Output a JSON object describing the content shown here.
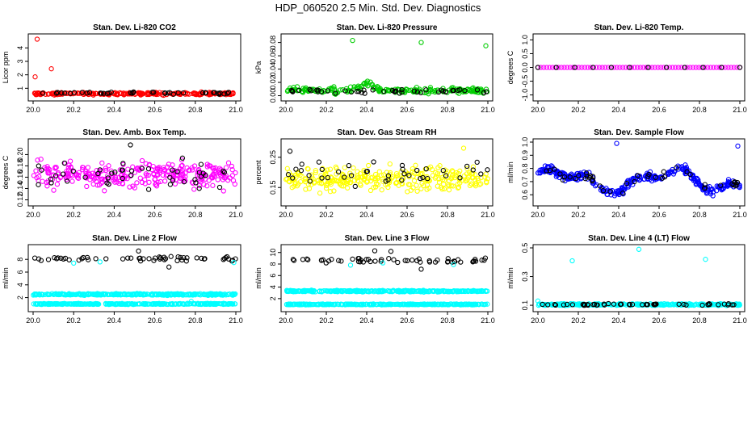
{
  "title": "HDP_060520  2.5 Min. Std. Dev. Diagnostics",
  "colors": {
    "black": "#000000",
    "red": "#ff0000",
    "green": "#00cc00",
    "magenta": "#ff00ff",
    "yellow": "#ffff00",
    "blue": "#0000ff",
    "cyan": "#00ffff"
  },
  "chart_data": [
    {
      "id": "co2",
      "type": "scatter",
      "title": "Stan. Dev. Li-820 CO2",
      "ylabel": "Licor ppm",
      "xlim": [
        20.0,
        21.0
      ],
      "ylim": [
        0.3,
        4.8
      ],
      "xticks": [
        20.0,
        20.2,
        20.4,
        20.6,
        20.8,
        21.0
      ],
      "xtick_labels": [
        "20.0",
        "20.2",
        "20.4",
        "20.6",
        "20.8",
        "21.0"
      ],
      "yticks": [
        1,
        2,
        3,
        4
      ],
      "ytick_labels": [
        "1",
        "2",
        "3",
        "4"
      ],
      "series": [
        {
          "name": "main",
          "color": "red",
          "base": 0.6,
          "spread": 0.09,
          "n": 220
        },
        {
          "name": "overlay",
          "color": "black",
          "base": 0.65,
          "spread": 0.07,
          "n": 40
        }
      ],
      "outliers": [
        {
          "x": 20.01,
          "y": 1.85,
          "color": "red"
        },
        {
          "x": 20.02,
          "y": 4.65,
          "color": "red"
        },
        {
          "x": 20.09,
          "y": 2.45,
          "color": "red"
        }
      ]
    },
    {
      "id": "pressure",
      "type": "scatter",
      "title": "Stan. Dev. Li-820 Pressure",
      "ylabel": "kPa",
      "xlim": [
        20.0,
        21.0
      ],
      "ylim": [
        -0.003,
        0.088
      ],
      "xticks": [
        20.0,
        20.2,
        20.4,
        20.6,
        20.8,
        21.0
      ],
      "xtick_labels": [
        "20.0",
        "20.2",
        "20.4",
        "20.6",
        "20.8",
        "21.0"
      ],
      "yticks": [
        0.0,
        0.02,
        0.04,
        0.06,
        0.08
      ],
      "ytick_labels": [
        "0.00",
        "0.02",
        "0.04",
        "0.06",
        "0.08"
      ],
      "series": [
        {
          "name": "main",
          "color": "green",
          "base": 0.008,
          "spread": 0.004,
          "n": 220,
          "hump": {
            "x": 20.4,
            "h": 0.01,
            "w": 0.05
          }
        },
        {
          "name": "overlay",
          "color": "black",
          "base": 0.007,
          "spread": 0.003,
          "n": 45
        }
      ],
      "outliers": [
        {
          "x": 20.33,
          "y": 0.083,
          "color": "green"
        },
        {
          "x": 20.67,
          "y": 0.08,
          "color": "green"
        },
        {
          "x": 20.99,
          "y": 0.075,
          "color": "green"
        }
      ]
    },
    {
      "id": "temp",
      "type": "scatter",
      "title": "Stan. Dev. Li-820 Temp.",
      "ylabel": "degrees C",
      "xlim": [
        20.0,
        21.0
      ],
      "ylim": [
        -1.1,
        1.1
      ],
      "xticks": [
        20.0,
        20.2,
        20.4,
        20.6,
        20.8,
        21.0
      ],
      "xtick_labels": [
        "20.0",
        "20.2",
        "20.4",
        "20.6",
        "20.8",
        "21.0"
      ],
      "yticks": [
        -1.0,
        -0.5,
        0.0,
        0.5,
        1.0
      ],
      "ytick_labels": [
        "-1.0",
        "-0.5",
        "0.0",
        "0.5",
        "1.0"
      ],
      "series": [
        {
          "name": "main",
          "color": "magenta",
          "base": 0.0,
          "spread": 0.0,
          "n": 70
        },
        {
          "name": "overlay",
          "color": "black",
          "base": 0.0,
          "spread": 0.0,
          "n": 12
        }
      ],
      "outliers": []
    },
    {
      "id": "boxtemp",
      "type": "scatter",
      "title": "Stan. Dev. Amb. Box Temp.",
      "ylabel": "degrees C",
      "xlim": [
        20.0,
        21.0
      ],
      "ylim": [
        0.115,
        0.222
      ],
      "xticks": [
        20.0,
        20.2,
        20.4,
        20.6,
        20.8,
        21.0
      ],
      "xtick_labels": [
        "20.0",
        "20.2",
        "20.4",
        "20.6",
        "20.8",
        "21.0"
      ],
      "yticks": [
        0.12,
        0.14,
        0.16,
        0.18,
        0.2
      ],
      "ytick_labels": [
        "0.12",
        "0.14",
        "0.16",
        "0.18",
        "0.20"
      ],
      "series": [
        {
          "name": "main",
          "color": "magenta",
          "base": 0.164,
          "spread": 0.022,
          "n": 300
        },
        {
          "name": "overlay",
          "color": "black",
          "base": 0.166,
          "spread": 0.022,
          "n": 45
        }
      ],
      "outliers": [
        {
          "x": 20.48,
          "y": 0.217,
          "color": "black"
        }
      ]
    },
    {
      "id": "rh",
      "type": "scatter",
      "title": "Stan. Dev. Gas Stream RH",
      "ylabel": "percent",
      "xlim": [
        20.0,
        21.0
      ],
      "ylim": [
        0.1,
        0.3
      ],
      "xticks": [
        20.0,
        20.2,
        20.4,
        20.6,
        20.8,
        21.0
      ],
      "xtick_labels": [
        "20.0",
        "20.2",
        "20.4",
        "20.6",
        "20.8",
        "21.0"
      ],
      "yticks": [
        0.15,
        0.25
      ],
      "ytick_labels": [
        "0.15",
        "0.25"
      ],
      "series": [
        {
          "name": "main",
          "color": "yellow",
          "base": 0.18,
          "spread": 0.035,
          "n": 300
        },
        {
          "name": "overlay",
          "color": "black",
          "base": 0.2,
          "spread": 0.035,
          "n": 40
        }
      ],
      "outliers": [
        {
          "x": 20.02,
          "y": 0.27,
          "color": "black"
        },
        {
          "x": 20.88,
          "y": 0.28,
          "color": "yellow"
        }
      ]
    },
    {
      "id": "sampleflow",
      "type": "scatter",
      "title": "Stan. Dev. Sample Flow",
      "ylabel": "ml/min",
      "xlim": [
        20.0,
        21.0
      ],
      "ylim": [
        0.54,
        1.0
      ],
      "xticks": [
        20.0,
        20.2,
        20.4,
        20.6,
        20.8,
        21.0
      ],
      "xtick_labels": [
        "20.0",
        "20.2",
        "20.4",
        "20.6",
        "20.8",
        "21.0"
      ],
      "yticks": [
        0.6,
        0.7,
        0.8,
        0.9,
        1.0
      ],
      "ytick_labels": [
        "0.6",
        "0.7",
        "0.8",
        "0.9",
        "1.0"
      ],
      "series": [
        {
          "name": "main",
          "color": "blue",
          "base": "wave",
          "spread": 0.03,
          "n": 320
        },
        {
          "name": "overlay",
          "color": "black",
          "base": "wave",
          "spread": 0.03,
          "n": 45
        }
      ],
      "outliers": [
        {
          "x": 20.39,
          "y": 0.99,
          "color": "blue"
        },
        {
          "x": 20.99,
          "y": 0.97,
          "color": "blue"
        }
      ]
    },
    {
      "id": "line2",
      "type": "scatter",
      "title": "Stan. Dev. Line 2 Flow",
      "ylabel": "ml/min",
      "xlim": [
        20.0,
        21.0
      ],
      "ylim": [
        0.3,
        9.8
      ],
      "xticks": [
        20.0,
        20.2,
        20.4,
        20.6,
        20.8,
        21.0
      ],
      "xtick_labels": [
        "20.0",
        "20.2",
        "20.4",
        "20.6",
        "20.8",
        "21.0"
      ],
      "yticks": [
        2,
        4,
        6,
        8
      ],
      "ytick_labels": [
        "2",
        "4",
        "6",
        "8"
      ],
      "series": [
        {
          "name": "band-upper",
          "color": "cyan",
          "base": 2.5,
          "spread": 0.12,
          "n": 330
        },
        {
          "name": "band-lower",
          "color": "cyan",
          "base": 1.0,
          "spread": 0.08,
          "n": 330
        },
        {
          "name": "overlay",
          "color": "black",
          "base": 8.1,
          "spread": 0.35,
          "n": 55
        }
      ],
      "outliers": [
        {
          "x": 20.52,
          "y": 9.3,
          "color": "black"
        },
        {
          "x": 20.67,
          "y": 6.8,
          "color": "black"
        },
        {
          "x": 20.78,
          "y": 1.4,
          "color": "cyan"
        },
        {
          "x": 20.2,
          "y": 7.4,
          "color": "cyan"
        },
        {
          "x": 20.33,
          "y": 7.6,
          "color": "cyan"
        },
        {
          "x": 20.99,
          "y": 7.5,
          "color": "cyan"
        }
      ]
    },
    {
      "id": "line3",
      "type": "scatter",
      "title": "Stan. Dev. Line 3 Flow",
      "ylabel": "ml/min",
      "xlim": [
        20.0,
        21.0
      ],
      "ylim": [
        0.3,
        10.8
      ],
      "xticks": [
        20.0,
        20.2,
        20.4,
        20.6,
        20.8,
        21.0
      ],
      "xtick_labels": [
        "20.0",
        "20.2",
        "20.4",
        "20.6",
        "20.8",
        "21.0"
      ],
      "yticks": [
        2,
        4,
        6,
        8,
        10
      ],
      "ytick_labels": [
        "2",
        "4",
        "6",
        "8",
        "10"
      ],
      "series": [
        {
          "name": "band-upper",
          "color": "cyan",
          "base": 3.3,
          "spread": 0.12,
          "n": 330
        },
        {
          "name": "band-lower",
          "color": "cyan",
          "base": 1.0,
          "spread": 0.07,
          "n": 330
        },
        {
          "name": "overlay",
          "color": "black",
          "base": 8.6,
          "spread": 0.4,
          "n": 55
        }
      ],
      "outliers": [
        {
          "x": 20.44,
          "y": 10.3,
          "color": "black"
        },
        {
          "x": 20.52,
          "y": 10.2,
          "color": "black"
        },
        {
          "x": 20.67,
          "y": 7.1,
          "color": "black"
        },
        {
          "x": 20.83,
          "y": 7.9,
          "color": "cyan"
        },
        {
          "x": 20.32,
          "y": 7.8,
          "color": "cyan"
        },
        {
          "x": 20.48,
          "y": 8.2,
          "color": "cyan"
        }
      ]
    },
    {
      "id": "line4",
      "type": "scatter",
      "title": "Stan. Dev. Line 4 (LT) Flow",
      "ylabel": "ml/min",
      "xlim": [
        20.0,
        21.0
      ],
      "ylim": [
        0.078,
        0.5
      ],
      "xticks": [
        20.0,
        20.2,
        20.4,
        20.6,
        20.8,
        21.0
      ],
      "xtick_labels": [
        "20.0",
        "20.2",
        "20.4",
        "20.6",
        "20.8",
        "21.0"
      ],
      "yticks": [
        0.1,
        0.3,
        0.5
      ],
      "ytick_labels": [
        "0.1",
        "0.3",
        "0.5"
      ],
      "series": [
        {
          "name": "main",
          "color": "cyan",
          "base": 0.105,
          "spread": 0.006,
          "n": 300
        },
        {
          "name": "overlay",
          "color": "black",
          "base": 0.105,
          "spread": 0.006,
          "n": 50
        }
      ],
      "outliers": [
        {
          "x": 20.17,
          "y": 0.41,
          "color": "cyan"
        },
        {
          "x": 20.5,
          "y": 0.49,
          "color": "cyan"
        },
        {
          "x": 20.83,
          "y": 0.42,
          "color": "cyan"
        },
        {
          "x": 20.0,
          "y": 0.13,
          "color": "cyan"
        }
      ]
    }
  ]
}
